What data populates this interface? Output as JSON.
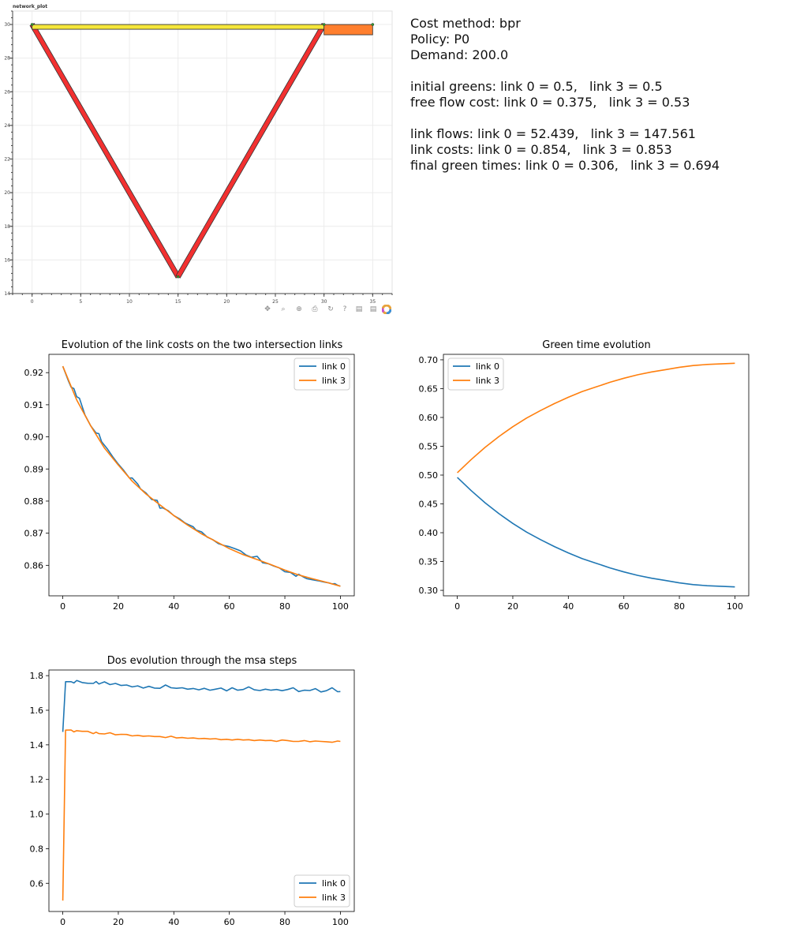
{
  "network_plot": {
    "title": "network_plot",
    "xlim": [
      -2,
      37
    ],
    "ylim": [
      14,
      30.8
    ],
    "xticks": [
      0,
      5,
      10,
      15,
      20,
      25,
      30,
      35
    ],
    "yticks": [
      14,
      16,
      18,
      20,
      22,
      24,
      26,
      28,
      30
    ],
    "links": [
      {
        "id": "link-0",
        "from": [
          0,
          30
        ],
        "to": [
          15,
          15
        ],
        "color": "#f23030"
      },
      {
        "id": "link-1",
        "from": [
          15,
          15
        ],
        "to": [
          30,
          30
        ],
        "color": "#f23030"
      },
      {
        "id": "link-2",
        "from": [
          0,
          30
        ],
        "to": [
          30,
          30
        ],
        "color": "#f5e63a"
      },
      {
        "id": "link-3",
        "from": [
          30,
          30
        ],
        "to": [
          35,
          30
        ],
        "color": "#ff7f2e"
      }
    ],
    "nodes": [
      [
        0,
        30
      ],
      [
        15,
        15
      ],
      [
        30,
        30
      ],
      [
        35,
        30
      ]
    ],
    "toolbar": [
      "pan-icon",
      "zoom-icon",
      "box-zoom-icon",
      "save-icon",
      "reset-icon",
      "help-icon",
      "hover-icon",
      "hover2-icon",
      "bokeh-logo-icon"
    ]
  },
  "summary": {
    "cost_method": "Cost method: bpr",
    "policy": "Policy: P0",
    "demand": "Demand: 200.0",
    "initial_greens": "initial greens: link 0 = 0.5,   link 3 = 0.5",
    "free_flow_cost": "free flow cost: link 0 = 0.375,   link 3 = 0.53",
    "link_flows": "link flows: link 0 = 52.439,   link 3 = 147.561",
    "link_costs": "link costs: link 0 = 0.854,   link 3 = 0.853",
    "final_green": "final green times: link 0 = 0.306,   link 3 = 0.694"
  },
  "chart_data": [
    {
      "type": "line",
      "title": "Evolution of the link costs on the two intersection links",
      "xlabel": "",
      "ylabel": "",
      "xlim": [
        -5,
        105
      ],
      "ylim": [
        0.8505,
        0.9257
      ],
      "xticks": [
        0,
        20,
        40,
        60,
        80,
        100
      ],
      "yticks": [
        0.86,
        0.87,
        0.88,
        0.89,
        0.9,
        0.91,
        0.92
      ],
      "ytick_labels": [
        "0.86",
        "0.87",
        "0.88",
        "0.89",
        "0.90",
        "0.91",
        "0.92"
      ],
      "legend": "top-right",
      "series": [
        {
          "name": "link 0",
          "color": "#1f77b4",
          "x": [
            0,
            2,
            3,
            4,
            5,
            6,
            8,
            10,
            12,
            13,
            14,
            16,
            18,
            20,
            22,
            24,
            25,
            27,
            28,
            30,
            32,
            34,
            35,
            36,
            38,
            40,
            42,
            44,
            45,
            47,
            48,
            50,
            52,
            54,
            56,
            58,
            60,
            62,
            64,
            66,
            68,
            70,
            72,
            74,
            76,
            78,
            80,
            82,
            84,
            85,
            87,
            88,
            90,
            92,
            94,
            96,
            97,
            98,
            99,
            100
          ],
          "y": [
            0.922,
            0.9175,
            0.9155,
            0.915,
            0.9125,
            0.912,
            0.9068,
            0.9035,
            0.9012,
            0.901,
            0.8985,
            0.8963,
            0.8938,
            0.8915,
            0.8895,
            0.8872,
            0.8872,
            0.8853,
            0.8838,
            0.8825,
            0.8805,
            0.8802,
            0.8778,
            0.8779,
            0.877,
            0.8755,
            0.8745,
            0.8732,
            0.8728,
            0.872,
            0.871,
            0.8704,
            0.8688,
            0.868,
            0.8668,
            0.8662,
            0.8658,
            0.8652,
            0.8645,
            0.8632,
            0.8625,
            0.8628,
            0.8608,
            0.8605,
            0.8598,
            0.8592,
            0.858,
            0.8578,
            0.8566,
            0.8572,
            0.8562,
            0.8558,
            0.8555,
            0.8552,
            0.8548,
            0.8545,
            0.8542,
            0.8543,
            0.8538,
            0.8535
          ]
        },
        {
          "name": "link 3",
          "color": "#ff7f0e",
          "x": [
            0,
            5,
            10,
            15,
            20,
            25,
            30,
            35,
            40,
            45,
            50,
            55,
            60,
            65,
            70,
            75,
            80,
            85,
            90,
            95,
            100
          ],
          "y": [
            0.922,
            0.9115,
            0.9035,
            0.8965,
            0.8912,
            0.8862,
            0.8822,
            0.8788,
            0.8755,
            0.8725,
            0.8698,
            0.8675,
            0.8652,
            0.8633,
            0.8618,
            0.8602,
            0.8585,
            0.857,
            0.8558,
            0.8547,
            0.8535
          ]
        }
      ]
    },
    {
      "type": "line",
      "title": "Green time evolution",
      "xlabel": "",
      "ylabel": "",
      "xlim": [
        -5,
        105
      ],
      "ylim": [
        0.2905,
        0.7095
      ],
      "xticks": [
        0,
        20,
        40,
        60,
        80,
        100
      ],
      "yticks": [
        0.3,
        0.35,
        0.4,
        0.45,
        0.5,
        0.55,
        0.6,
        0.65,
        0.7
      ],
      "ytick_labels": [
        "0.30",
        "0.35",
        "0.40",
        "0.45",
        "0.50",
        "0.55",
        "0.60",
        "0.65",
        "0.70"
      ],
      "legend": "top-left",
      "series": [
        {
          "name": "link 0",
          "color": "#1f77b4",
          "x": [
            0,
            5,
            10,
            15,
            20,
            25,
            30,
            35,
            40,
            45,
            50,
            55,
            60,
            65,
            70,
            75,
            80,
            85,
            90,
            95,
            100
          ],
          "y": [
            0.496,
            0.473,
            0.452,
            0.433,
            0.416,
            0.401,
            0.388,
            0.376,
            0.365,
            0.355,
            0.347,
            0.339,
            0.332,
            0.326,
            0.321,
            0.317,
            0.313,
            0.31,
            0.308,
            0.307,
            0.306
          ]
        },
        {
          "name": "link 3",
          "color": "#ff7f0e",
          "x": [
            0,
            5,
            10,
            15,
            20,
            25,
            30,
            35,
            40,
            45,
            50,
            55,
            60,
            65,
            70,
            75,
            80,
            85,
            90,
            95,
            100
          ],
          "y": [
            0.504,
            0.527,
            0.548,
            0.567,
            0.584,
            0.599,
            0.612,
            0.624,
            0.635,
            0.645,
            0.653,
            0.661,
            0.668,
            0.674,
            0.679,
            0.683,
            0.687,
            0.69,
            0.692,
            0.693,
            0.694
          ]
        }
      ]
    },
    {
      "type": "line",
      "title": "Dos evolution through the msa steps",
      "xlabel": "",
      "ylabel": "",
      "xlim": [
        -5,
        105
      ],
      "ylim": [
        0.437,
        1.8326
      ],
      "xticks": [
        0,
        20,
        40,
        60,
        80,
        100
      ],
      "yticks": [
        0.6,
        0.8,
        1.0,
        1.2,
        1.4,
        1.6,
        1.8
      ],
      "ytick_labels": [
        "0.6",
        "0.8",
        "1.0",
        "1.2",
        "1.4",
        "1.6",
        "1.8"
      ],
      "legend": "bottom-right",
      "series": [
        {
          "name": "link 0",
          "color": "#1f77b4",
          "x": [
            0,
            1,
            3,
            4,
            5,
            7,
            9,
            11,
            12,
            13,
            15,
            17,
            19,
            21,
            23,
            25,
            27,
            29,
            31,
            33,
            35,
            37,
            39,
            41,
            43,
            45,
            47,
            49,
            51,
            53,
            55,
            57,
            59,
            61,
            63,
            65,
            67,
            69,
            71,
            73,
            75,
            77,
            79,
            81,
            83,
            85,
            87,
            89,
            91,
            93,
            95,
            97,
            99,
            100
          ],
          "y": [
            1.475,
            1.765,
            1.765,
            1.758,
            1.772,
            1.76,
            1.756,
            1.755,
            1.766,
            1.752,
            1.764,
            1.748,
            1.755,
            1.743,
            1.746,
            1.735,
            1.741,
            1.728,
            1.738,
            1.728,
            1.727,
            1.746,
            1.73,
            1.727,
            1.73,
            1.722,
            1.726,
            1.718,
            1.727,
            1.716,
            1.722,
            1.728,
            1.712,
            1.73,
            1.716,
            1.72,
            1.735,
            1.718,
            1.714,
            1.722,
            1.716,
            1.72,
            1.713,
            1.72,
            1.73,
            1.708,
            1.716,
            1.714,
            1.725,
            1.706,
            1.713,
            1.73,
            1.707,
            1.708
          ]
        },
        {
          "name": "link 3",
          "color": "#ff7f0e",
          "x": [
            0,
            1,
            3,
            4,
            5,
            7,
            9,
            11,
            12,
            13,
            15,
            17,
            19,
            21,
            23,
            25,
            27,
            29,
            31,
            33,
            35,
            37,
            39,
            41,
            43,
            45,
            47,
            49,
            51,
            53,
            55,
            57,
            59,
            61,
            63,
            65,
            67,
            69,
            71,
            73,
            75,
            77,
            79,
            81,
            83,
            85,
            87,
            89,
            91,
            93,
            95,
            97,
            99,
            100
          ],
          "y": [
            0.5,
            1.485,
            1.486,
            1.475,
            1.482,
            1.478,
            1.478,
            1.465,
            1.473,
            1.465,
            1.463,
            1.47,
            1.458,
            1.461,
            1.46,
            1.452,
            1.455,
            1.45,
            1.452,
            1.448,
            1.448,
            1.442,
            1.45,
            1.44,
            1.442,
            1.438,
            1.44,
            1.436,
            1.437,
            1.434,
            1.436,
            1.43,
            1.432,
            1.428,
            1.432,
            1.428,
            1.43,
            1.425,
            1.428,
            1.425,
            1.426,
            1.42,
            1.428,
            1.425,
            1.42,
            1.42,
            1.425,
            1.418,
            1.422,
            1.42,
            1.418,
            1.415,
            1.422,
            1.42
          ]
        }
      ]
    }
  ]
}
